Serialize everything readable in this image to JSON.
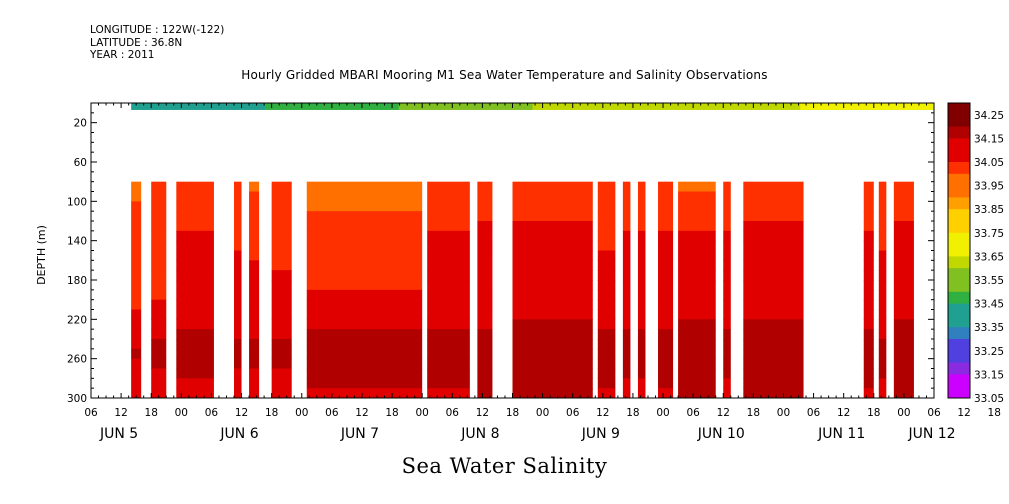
{
  "header": {
    "longitude": "LONGITUDE : 122W(-122)",
    "latitude": "LATITUDE : 36.8N",
    "year": "YEAR : 2011"
  },
  "colors": {
    "palette": [
      "#cc00ff",
      "#8a2be2",
      "#5040e0",
      "#3080c0",
      "#20a090",
      "#30b040",
      "#80c020",
      "#c0d800",
      "#f0f000",
      "#ffd000",
      "#ffa000",
      "#ff7000",
      "#ff3000",
      "#e00000",
      "#b00000",
      "#800000"
    ]
  },
  "chart_data": {
    "type": "heatmap",
    "title": "Hourly Gridded MBARI Mooring M1 Sea Water Temperature and Salinity Observations",
    "bottom_title": "Sea Water Salinity",
    "ylabel": "DEPTH (m)",
    "xlabel": "",
    "y_reversed": true,
    "ylim": [
      300,
      0
    ],
    "y_ticks": [
      20,
      60,
      100,
      140,
      180,
      220,
      260,
      300
    ],
    "x_start": "2011-06-05 06:00",
    "x_hours_per_tick": 6,
    "x_tick_labels": [
      "06",
      "12",
      "18",
      "00",
      "06",
      "12",
      "18",
      "00",
      "06",
      "12",
      "18",
      "00",
      "06",
      "12",
      "18",
      "00",
      "06",
      "12",
      "18",
      "00",
      "06",
      "12",
      "18",
      "00",
      "06",
      "12",
      "18",
      "00",
      "06",
      "12",
      "18",
      "00",
      "06",
      "12",
      "18",
      "00",
      "06"
    ],
    "date_labels": [
      "JUN  5",
      "JUN  6",
      "JUN  7",
      "JUN  8",
      "JUN  9",
      "JUN 10",
      "JUN 11",
      "JUN 12"
    ],
    "date_label_hours": [
      6,
      30,
      54,
      78,
      102,
      126,
      150,
      168
    ],
    "colorbar": {
      "levels": [
        "34.25",
        "34.15",
        "34.05",
        "33.95",
        "33.85",
        "33.75",
        "33.65",
        "33.55",
        "33.45",
        "33.35",
        "33.25",
        "33.15",
        "33.05"
      ],
      "min": 33.05,
      "max": 34.3,
      "step": 0.05
    },
    "surface_band": {
      "depth_range": [
        0,
        2
      ],
      "note_values": [
        33.4,
        33.45,
        33.55,
        33.6,
        33.65,
        33.7
      ]
    },
    "data_segments": [
      {
        "from_hour": 8,
        "to_hour": 10,
        "value_top": 33.97,
        "value_mid": 34.05,
        "value_bottom": 34.15
      },
      {
        "from_hour": 12,
        "to_hour": 15,
        "value_top": 33.99,
        "value_mid": 34.06,
        "value_bottom": 34.16
      },
      {
        "from_hour": 17,
        "to_hour": 24.5,
        "value_top": 33.99,
        "value_mid": 34.1,
        "value_bottom": 34.17
      },
      {
        "from_hour": 28.5,
        "to_hour": 30,
        "value_top": 33.99,
        "value_mid": 34.09,
        "value_bottom": 34.16
      },
      {
        "from_hour": 31.5,
        "to_hour": 33.5,
        "value_top": 33.97,
        "value_mid": 34.09,
        "value_bottom": 34.16
      },
      {
        "from_hour": 36,
        "to_hour": 40,
        "value_top": 33.99,
        "value_mid": 34.08,
        "value_bottom": 34.16
      },
      {
        "from_hour": 43,
        "to_hour": 66,
        "value_top": 33.92,
        "value_mid": 34.07,
        "value_bottom": 34.2
      },
      {
        "from_hour": 67,
        "to_hour": 75.5,
        "value_top": 33.99,
        "value_mid": 34.1,
        "value_bottom": 34.18
      },
      {
        "from_hour": 77,
        "to_hour": 80,
        "value_top": 33.99,
        "value_mid": 34.11,
        "value_bottom": 34.18
      },
      {
        "from_hour": 84,
        "to_hour": 100,
        "value_top": 33.99,
        "value_mid": 34.11,
        "value_bottom": 34.2
      },
      {
        "from_hour": 101,
        "to_hour": 104.5,
        "value_top": 33.99,
        "value_mid": 34.09,
        "value_bottom": 34.18
      },
      {
        "from_hour": 106,
        "to_hour": 107.5,
        "value_top": 33.99,
        "value_mid": 34.1,
        "value_bottom": 34.17
      },
      {
        "from_hour": 109,
        "to_hour": 110.5,
        "value_top": 33.99,
        "value_mid": 34.1,
        "value_bottom": 34.17
      },
      {
        "from_hour": 113,
        "to_hour": 116,
        "value_top": 33.99,
        "value_mid": 34.1,
        "value_bottom": 34.18
      },
      {
        "from_hour": 117,
        "to_hour": 124.5,
        "value_top": 33.98,
        "value_mid": 34.11,
        "value_bottom": 34.2
      },
      {
        "from_hour": 126,
        "to_hour": 127.5,
        "value_top": 33.99,
        "value_mid": 34.1,
        "value_bottom": 34.17
      },
      {
        "from_hour": 130,
        "to_hour": 142,
        "value_top": 33.99,
        "value_mid": 34.11,
        "value_bottom": 34.2
      },
      {
        "from_hour": 154,
        "to_hour": 156,
        "value_top": 33.99,
        "value_mid": 34.1,
        "value_bottom": 34.18
      },
      {
        "from_hour": 157,
        "to_hour": 158.5,
        "value_top": 33.99,
        "value_mid": 34.09,
        "value_bottom": 34.17
      },
      {
        "from_hour": 160,
        "to_hour": 164,
        "value_top": 33.99,
        "value_mid": 34.12,
        "value_bottom": 34.2
      }
    ],
    "data_depth_range": [
      80,
      300
    ]
  }
}
